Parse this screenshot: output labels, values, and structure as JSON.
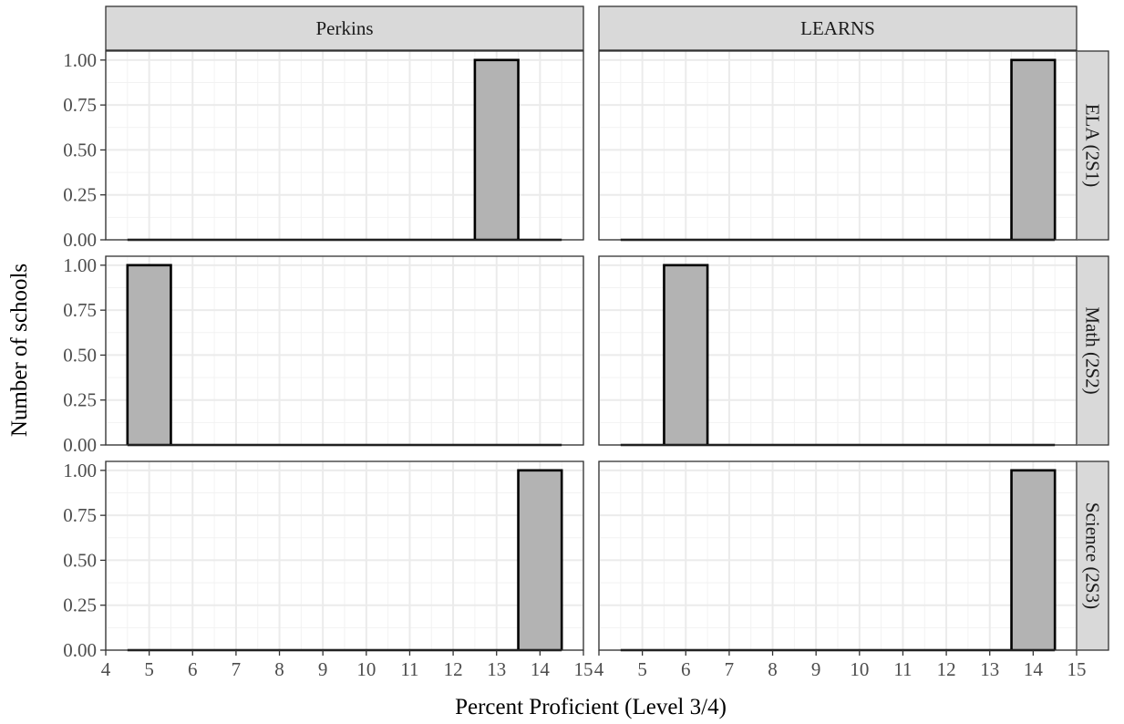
{
  "chart_data": {
    "type": "bar",
    "facet_columns": [
      "Perkins",
      "LEARNS"
    ],
    "facet_rows": [
      "ELA (2S1)",
      "Math (2S2)",
      "Science (2S3)"
    ],
    "xlabel": "Percent Proficient (Level 3/4)",
    "ylabel": "Number of schools",
    "xlim": [
      4,
      15
    ],
    "ylim": [
      0,
      1.05
    ],
    "x_ticks": [
      "4",
      "5",
      "6",
      "7",
      "8",
      "9",
      "10",
      "11",
      "12",
      "13",
      "14",
      "15"
    ],
    "y_ticks": [
      "0.00",
      "0.25",
      "0.50",
      "0.75",
      "1.00"
    ],
    "bin_width": 1,
    "bins_range": [
      5,
      14
    ],
    "grid": true,
    "bar_fill": "#b3b3b3",
    "panels": [
      {
        "column": "Perkins",
        "row": "ELA (2S1)",
        "x": [
          5,
          6,
          7,
          8,
          9,
          10,
          11,
          12,
          13,
          14
        ],
        "counts": [
          0,
          0,
          0,
          0,
          0,
          0,
          0,
          0,
          1,
          0
        ]
      },
      {
        "column": "LEARNS",
        "row": "ELA (2S1)",
        "x": [
          5,
          6,
          7,
          8,
          9,
          10,
          11,
          12,
          13,
          14
        ],
        "counts": [
          0,
          0,
          0,
          0,
          0,
          0,
          0,
          0,
          0,
          1
        ]
      },
      {
        "column": "Perkins",
        "row": "Math (2S2)",
        "x": [
          5,
          6,
          7,
          8,
          9,
          10,
          11,
          12,
          13,
          14
        ],
        "counts": [
          1,
          0,
          0,
          0,
          0,
          0,
          0,
          0,
          0,
          0
        ]
      },
      {
        "column": "LEARNS",
        "row": "Math (2S2)",
        "x": [
          5,
          6,
          7,
          8,
          9,
          10,
          11,
          12,
          13,
          14
        ],
        "counts": [
          0,
          1,
          0,
          0,
          0,
          0,
          0,
          0,
          0,
          0
        ]
      },
      {
        "column": "Perkins",
        "row": "Science (2S3)",
        "x": [
          5,
          6,
          7,
          8,
          9,
          10,
          11,
          12,
          13,
          14
        ],
        "counts": [
          0,
          0,
          0,
          0,
          0,
          0,
          0,
          0,
          0,
          1
        ]
      },
      {
        "column": "LEARNS",
        "row": "Science (2S3)",
        "x": [
          5,
          6,
          7,
          8,
          9,
          10,
          11,
          12,
          13,
          14
        ],
        "counts": [
          0,
          0,
          0,
          0,
          0,
          0,
          0,
          0,
          0,
          1
        ]
      }
    ]
  }
}
